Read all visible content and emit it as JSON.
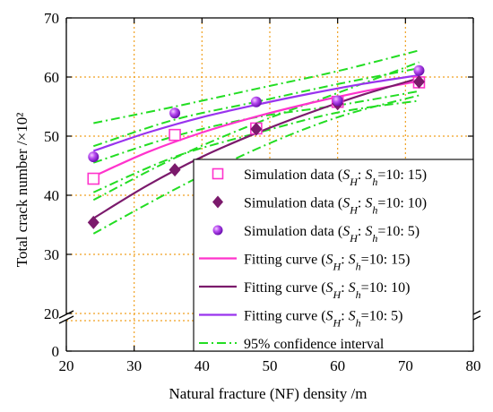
{
  "chart_data": {
    "type": "scatter",
    "xlabel": "Natural fracture (NF) density /m",
    "ylabel": "Total crack number /×10²",
    "xlim": [
      20,
      80
    ],
    "ylim": [
      0,
      70
    ],
    "y_axis_break": [
      4,
      20
    ],
    "grid": true,
    "legend_position": "bottom-right",
    "x_ticks": [
      "20",
      "30",
      "40",
      "50",
      "60",
      "70",
      "80"
    ],
    "y_ticks": [
      "0",
      "20",
      "30",
      "40",
      "50",
      "60",
      "70"
    ],
    "series": [
      {
        "name": "Simulation data (SH: Sh=10: 15)",
        "label_prefix": "Simulation data (",
        "S1": "S",
        "s1": "H",
        "mid": ": ",
        "S2": "S",
        "s2": "h",
        "ratio": "=10: 15)",
        "kind": "markers",
        "marker": "open-square",
        "color": "#ff33cc",
        "x": [
          24,
          36,
          48,
          60,
          72
        ],
        "y": [
          42.8,
          50.2,
          51.3,
          55.8,
          59.1
        ]
      },
      {
        "name": "Simulation data (SH: Sh=10: 10)",
        "label_prefix": "Simulation data (",
        "S1": "S",
        "s1": "H",
        "mid": ": ",
        "S2": "S",
        "s2": "h",
        "ratio": "=10: 10)",
        "kind": "markers",
        "marker": "diamond",
        "color": "#7b1a6c",
        "x": [
          24,
          36,
          48,
          60,
          72
        ],
        "y": [
          35.4,
          44.3,
          51.2,
          55.5,
          59.2
        ]
      },
      {
        "name": "Simulation data (SH: Sh=10: 5)",
        "label_prefix": "Simulation data (",
        "S1": "S",
        "s1": "H",
        "mid": ": ",
        "S2": "S",
        "s2": "h",
        "ratio": "=10:   5)",
        "kind": "markers",
        "marker": "sphere",
        "color": "#9933ee",
        "x": [
          24,
          36,
          48,
          60,
          72
        ],
        "y": [
          46.5,
          53.9,
          55.8,
          56.0,
          61.1
        ]
      },
      {
        "name": "Fitting curve (SH: Sh=10: 15)",
        "label_prefix": "Fitting curve (",
        "S1": "S",
        "s1": "H",
        "mid": ": ",
        "S2": "S",
        "s2": "h",
        "ratio": "=10: 15)",
        "kind": "line",
        "color": "#ff33cc",
        "x": [
          24,
          32,
          40,
          48,
          56,
          64,
          72
        ],
        "y": [
          43.2,
          47.3,
          50.6,
          53.3,
          55.6,
          57.6,
          59.3
        ]
      },
      {
        "name": "Fitting curve (SH: Sh=10: 10)",
        "label_prefix": "Fitting curve (",
        "S1": "S",
        "s1": "H",
        "mid": ": ",
        "S2": "S",
        "s2": "h",
        "ratio": "=10: 10)",
        "kind": "line",
        "color": "#7b1a6c",
        "x": [
          24,
          32,
          40,
          48,
          56,
          64,
          72
        ],
        "y": [
          36.1,
          41.7,
          46.5,
          50.5,
          54.0,
          57.1,
          59.8
        ]
      },
      {
        "name": "Fitting curve (SH: Sh=10: 5)",
        "label_prefix": "Fitting curve (",
        "S1": "S",
        "s1": "H",
        "mid": ": ",
        "S2": "S",
        "s2": "h",
        "ratio": "=10:   5)",
        "kind": "line",
        "color": "#9933ee",
        "x": [
          24,
          32,
          40,
          48,
          56,
          64,
          72
        ],
        "y": [
          47.5,
          50.6,
          53.2,
          55.3,
          57.2,
          58.9,
          60.3
        ]
      }
    ],
    "confidence_intervals": [
      {
        "color": "#22dd22",
        "x": [
          24,
          36,
          48,
          60,
          72
        ],
        "upper": [
          52.2,
          55.0,
          58.0,
          61.0,
          64.5
        ],
        "lower": [
          40.5,
          46.5,
          50.5,
          54.0,
          56.0
        ]
      },
      {
        "color": "#22dd22",
        "x": [
          24,
          36,
          48,
          60,
          72
        ],
        "upper": [
          39.2,
          46.3,
          52.2,
          57.3,
          62.5
        ],
        "lower": [
          33.5,
          41.0,
          47.8,
          53.2,
          56.9
        ]
      },
      {
        "color": "#22dd22",
        "x": [
          24,
          36,
          48,
          60,
          72
        ],
        "upper": [
          48.3,
          52.8,
          55.8,
          58.8,
          61.5
        ],
        "lower": [
          45.5,
          50.0,
          53.2,
          55.2,
          57.6
        ]
      }
    ],
    "ci_legend": {
      "name": "95% confidence interval",
      "kind": "dash-dot",
      "color": "#22dd22"
    }
  }
}
